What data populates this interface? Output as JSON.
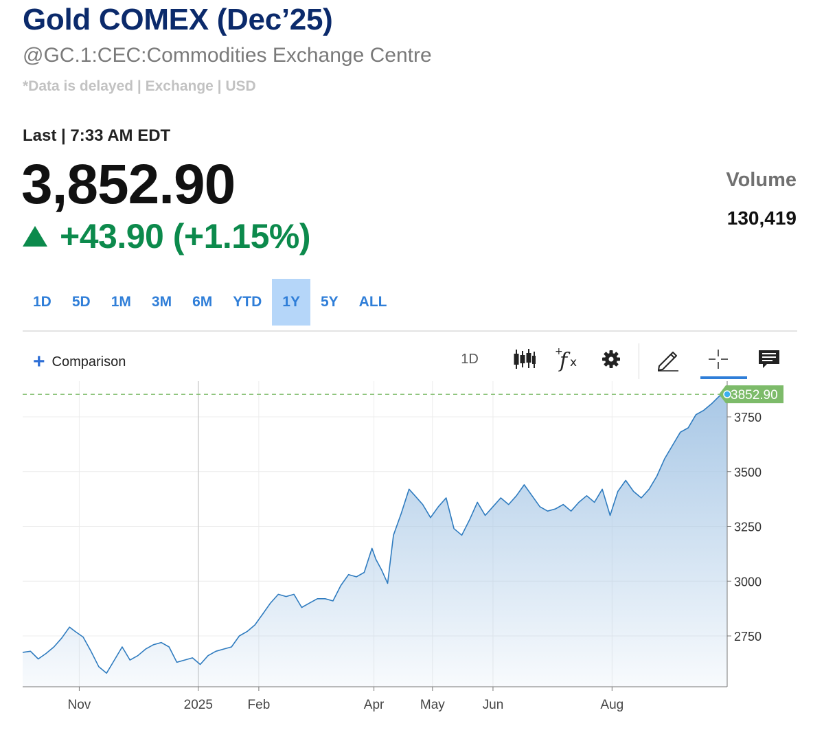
{
  "header": {
    "title": "Gold COMEX (Dec’25)",
    "subtitle": "@GC.1:CEC:Commodities Exchange Centre",
    "note": "*Data is delayed | Exchange | USD"
  },
  "quote": {
    "last_line": "Last | 7:33 AM EDT",
    "price": "3,852.90",
    "change": "+43.90 (+1.15%)",
    "direction_icon": "triangle-up-icon",
    "up_color": "#0c8a4c"
  },
  "volume": {
    "label": "Volume",
    "value": "130,419"
  },
  "ranges": {
    "items": [
      "1D",
      "5D",
      "1M",
      "3M",
      "6M",
      "YTD",
      "1Y",
      "5Y",
      "ALL"
    ],
    "selected": "1Y"
  },
  "toolbar": {
    "comparison_label": "Comparison",
    "interval": "1D",
    "icons": [
      "candlestick-icon",
      "function-icon",
      "gear-icon",
      "pencil-icon",
      "crosshair-icon",
      "comment-icon"
    ]
  },
  "chart_data": {
    "type": "area",
    "line_color": "#2e7bbf",
    "fill_color": "#a9c8e6",
    "last_value_color": "#7dbb6a",
    "last_value_label": "3852.90",
    "last_value": 3852.9,
    "x_ticks": [
      "Nov",
      "2025",
      "Feb",
      "Apr",
      "May",
      "Jun",
      "Aug"
    ],
    "y_ticks": [
      3750,
      3500,
      3250,
      3000,
      2750
    ],
    "ylim": [
      2560,
      3960
    ],
    "grid": true,
    "dates": [
      "2024-10-03",
      "2024-10-07",
      "2024-10-11",
      "2024-10-15",
      "2024-10-19",
      "2024-10-23",
      "2024-10-27",
      "2024-10-30",
      "2024-11-03",
      "2024-11-07",
      "2024-11-11",
      "2024-11-15",
      "2024-11-19",
      "2024-11-23",
      "2024-11-27",
      "2024-12-01",
      "2024-12-05",
      "2024-12-09",
      "2024-12-13",
      "2024-12-17",
      "2024-12-21",
      "2024-12-25",
      "2024-12-29",
      "2025-01-02",
      "2025-01-06",
      "2025-01-10",
      "2025-01-14",
      "2025-01-18",
      "2025-01-22",
      "2025-01-26",
      "2025-01-30",
      "2025-02-03",
      "2025-02-07",
      "2025-02-11",
      "2025-02-15",
      "2025-02-19",
      "2025-02-23",
      "2025-02-27",
      "2025-03-03",
      "2025-03-07",
      "2025-03-11",
      "2025-03-15",
      "2025-03-19",
      "2025-03-23",
      "2025-03-27",
      "2025-03-31",
      "2025-04-02",
      "2025-04-05",
      "2025-04-08",
      "2025-04-11",
      "2025-04-15",
      "2025-04-19",
      "2025-04-22",
      "2025-04-26",
      "2025-04-30",
      "2025-05-04",
      "2025-05-08",
      "2025-05-12",
      "2025-05-16",
      "2025-05-20",
      "2025-05-24",
      "2025-05-28",
      "2025-06-01",
      "2025-06-05",
      "2025-06-09",
      "2025-06-13",
      "2025-06-17",
      "2025-06-21",
      "2025-06-25",
      "2025-06-29",
      "2025-07-03",
      "2025-07-07",
      "2025-07-11",
      "2025-07-15",
      "2025-07-19",
      "2025-07-23",
      "2025-07-27",
      "2025-07-31",
      "2025-08-04",
      "2025-08-08",
      "2025-08-12",
      "2025-08-16",
      "2025-08-20",
      "2025-08-24",
      "2025-08-28",
      "2025-09-01",
      "2025-09-05",
      "2025-09-09",
      "2025-09-13",
      "2025-09-17",
      "2025-09-21",
      "2025-09-25",
      "2025-09-29"
    ],
    "values": [
      2675,
      2680,
      2645,
      2670,
      2700,
      2740,
      2790,
      2770,
      2745,
      2680,
      2610,
      2580,
      2640,
      2700,
      2640,
      2660,
      2690,
      2710,
      2720,
      2700,
      2630,
      2640,
      2650,
      2620,
      2660,
      2680,
      2690,
      2700,
      2750,
      2770,
      2800,
      2850,
      2900,
      2940,
      2930,
      2940,
      2880,
      2900,
      2920,
      2920,
      2910,
      2980,
      3030,
      3020,
      3040,
      3150,
      3100,
      3050,
      2990,
      3210,
      3310,
      3420,
      3390,
      3350,
      3290,
      3340,
      3380,
      3240,
      3210,
      3280,
      3360,
      3300,
      3340,
      3380,
      3350,
      3390,
      3440,
      3390,
      3340,
      3320,
      3330,
      3350,
      3320,
      3360,
      3390,
      3360,
      3420,
      3300,
      3410,
      3460,
      3410,
      3380,
      3420,
      3480,
      3560,
      3620,
      3680,
      3700,
      3760,
      3780,
      3810,
      3845,
      3852.9
    ]
  }
}
